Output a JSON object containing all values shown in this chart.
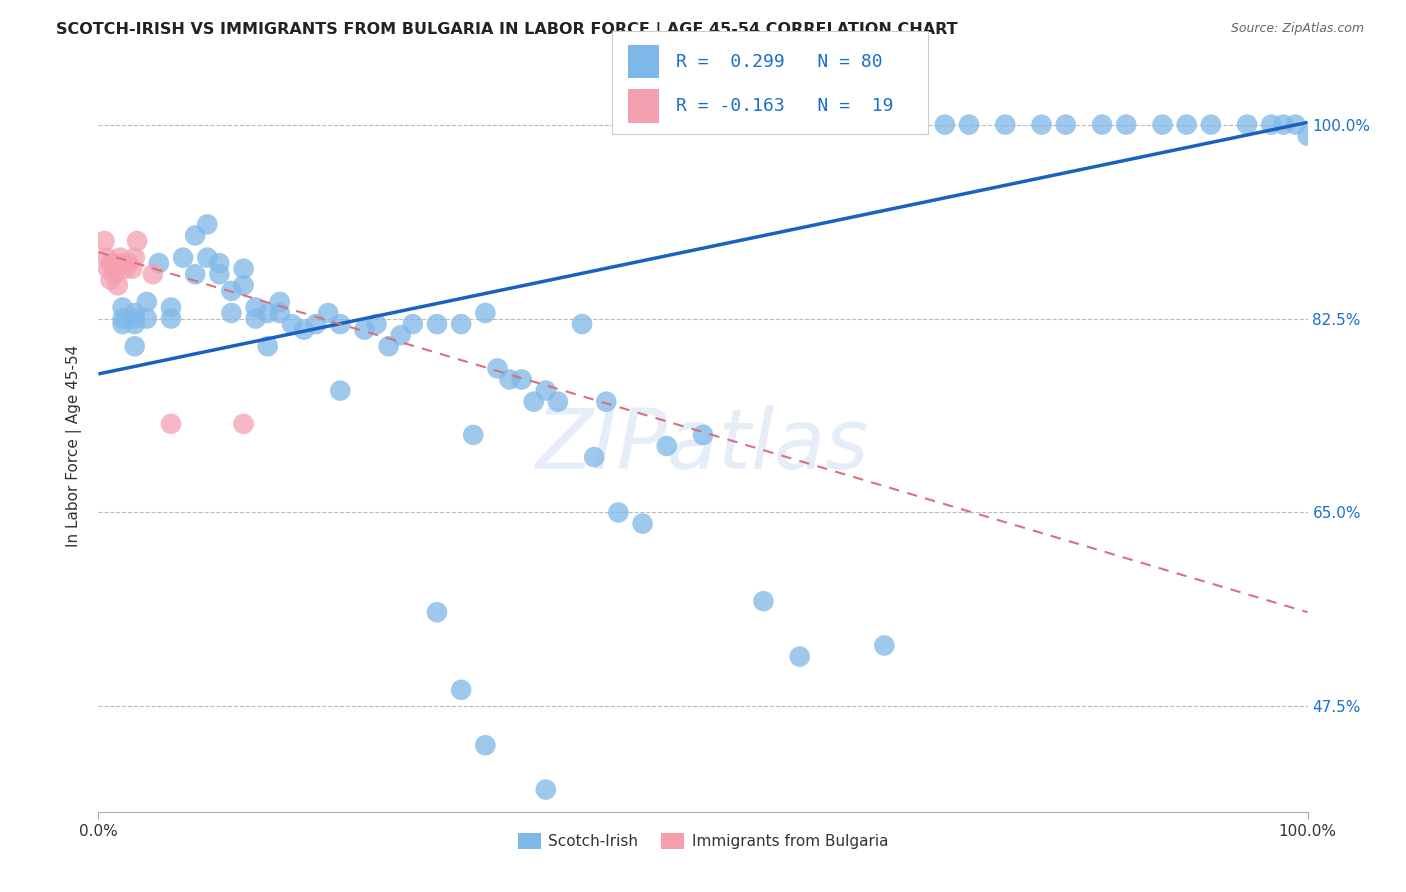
{
  "title": "SCOTCH-IRISH VS IMMIGRANTS FROM BULGARIA IN LABOR FORCE | AGE 45-54 CORRELATION CHART",
  "source": "Source: ZipAtlas.com",
  "ylabel": "In Labor Force | Age 45-54",
  "y_tick_labels": [
    "47.5%",
    "65.0%",
    "82.5%",
    "100.0%"
  ],
  "y_tick_values": [
    0.475,
    0.65,
    0.825,
    1.0
  ],
  "xlim": [
    0.0,
    1.0
  ],
  "ylim": [
    0.38,
    1.04
  ],
  "scotch_irish_color": "#7EB8E8",
  "bulgaria_color": "#F4A0B0",
  "trendline_blue_color": "#1B62C0",
  "trendline_pink_color": "#D97080",
  "background_color": "#FFFFFF",
  "watermark_text": "ZIPatlas",
  "blue_trend_x0": 0.0,
  "blue_trend_y0": 0.775,
  "blue_trend_x1": 1.0,
  "blue_trend_y1": 1.002,
  "pink_trend_x0": 0.0,
  "pink_trend_y0": 0.885,
  "pink_trend_x1": 1.0,
  "pink_trend_y1": 0.56,
  "scotch_irish_x": [
    0.02,
    0.02,
    0.02,
    0.03,
    0.03,
    0.03,
    0.03,
    0.04,
    0.04,
    0.05,
    0.06,
    0.06,
    0.07,
    0.08,
    0.08,
    0.09,
    0.09,
    0.1,
    0.1,
    0.11,
    0.11,
    0.12,
    0.12,
    0.13,
    0.13,
    0.14,
    0.14,
    0.15,
    0.15,
    0.16,
    0.17,
    0.18,
    0.19,
    0.2,
    0.2,
    0.22,
    0.23,
    0.24,
    0.25,
    0.26,
    0.28,
    0.3,
    0.31,
    0.33,
    0.35,
    0.36,
    0.37,
    0.38,
    0.4,
    0.41,
    0.43,
    0.45,
    0.47,
    0.5,
    0.55,
    0.58,
    0.65,
    0.32,
    0.34,
    0.42,
    0.62,
    0.7,
    0.72,
    0.75,
    0.78,
    0.8,
    0.83,
    0.85,
    0.88,
    0.9,
    0.92,
    0.95,
    0.97,
    0.98,
    0.99,
    1.0,
    0.28,
    0.3,
    0.32,
    0.37
  ],
  "scotch_irish_y": [
    0.835,
    0.82,
    0.825,
    0.83,
    0.82,
    0.825,
    0.8,
    0.84,
    0.825,
    0.875,
    0.835,
    0.825,
    0.88,
    0.9,
    0.865,
    0.91,
    0.88,
    0.875,
    0.865,
    0.83,
    0.85,
    0.855,
    0.87,
    0.835,
    0.825,
    0.8,
    0.83,
    0.83,
    0.84,
    0.82,
    0.815,
    0.82,
    0.83,
    0.76,
    0.82,
    0.815,
    0.82,
    0.8,
    0.81,
    0.82,
    0.82,
    0.82,
    0.72,
    0.78,
    0.77,
    0.75,
    0.76,
    0.75,
    0.82,
    0.7,
    0.65,
    0.64,
    0.71,
    0.72,
    0.57,
    0.52,
    0.53,
    0.83,
    0.77,
    0.75,
    1.0,
    1.0,
    1.0,
    1.0,
    1.0,
    1.0,
    1.0,
    1.0,
    1.0,
    1.0,
    1.0,
    1.0,
    1.0,
    1.0,
    1.0,
    0.99,
    0.56,
    0.49,
    0.44,
    0.4
  ],
  "bulgaria_x": [
    0.005,
    0.007,
    0.008,
    0.01,
    0.01,
    0.012,
    0.013,
    0.015,
    0.016,
    0.018,
    0.02,
    0.022,
    0.025,
    0.028,
    0.03,
    0.032,
    0.045,
    0.06,
    0.12
  ],
  "bulgaria_y": [
    0.895,
    0.88,
    0.87,
    0.875,
    0.86,
    0.875,
    0.865,
    0.87,
    0.855,
    0.88,
    0.875,
    0.87,
    0.875,
    0.87,
    0.88,
    0.895,
    0.865,
    0.73,
    0.73
  ]
}
